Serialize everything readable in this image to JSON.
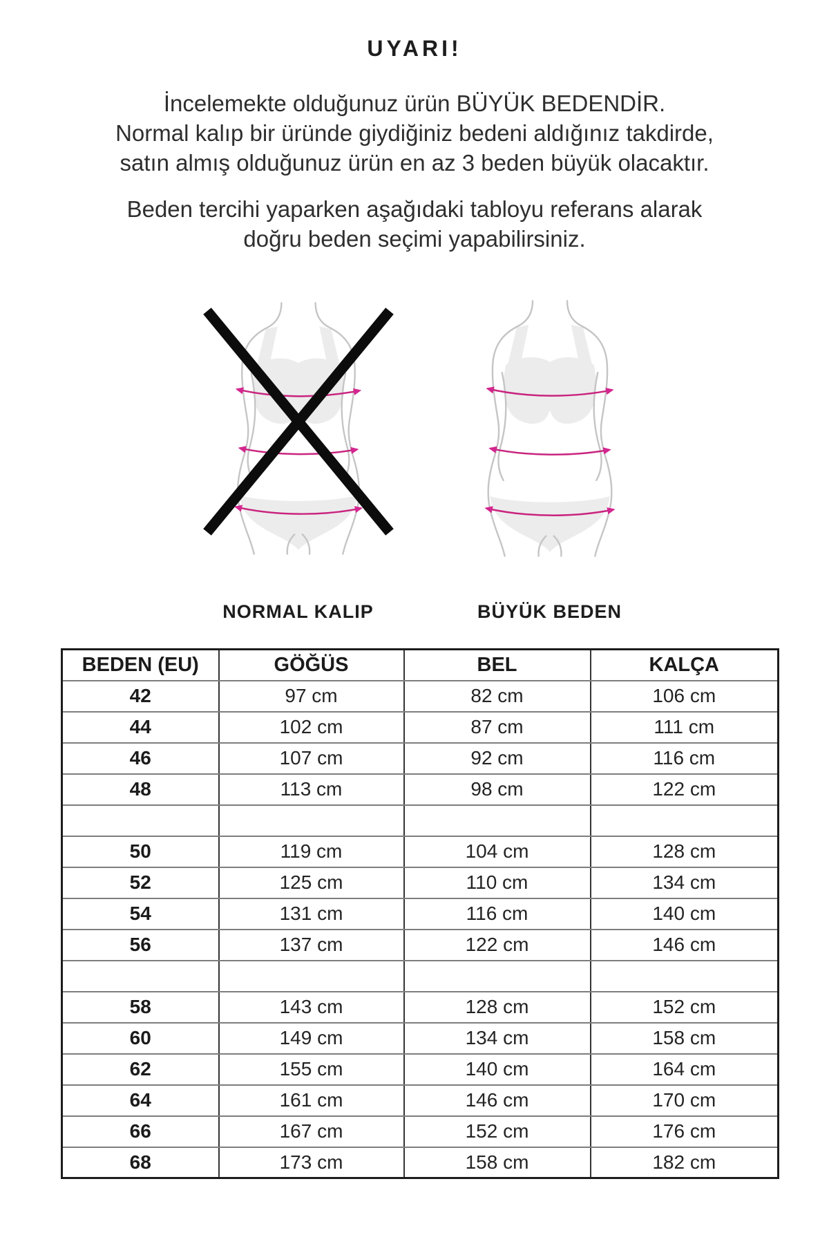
{
  "warning": {
    "title": "UYARI!",
    "intro_prefix": "İncelemekte olduğunuz ürün ",
    "intro_emphasis": "BÜYÜK BEDENDİR.",
    "line2": "Normal kalıp bir üründe giydiğiniz bedeni aldığınız takdirde,",
    "line3": "satın almış olduğunuz ürün en az 3 beden büyük olacaktır.",
    "advice_line1": "Beden tercihi yaparken aşağıdaki tabloyu referans alarak",
    "advice_line2": "doğru beden seçimi yapabilirsiniz."
  },
  "figures": {
    "normal": {
      "label": "NORMAL KALIP",
      "crossed_out": true
    },
    "plus": {
      "label": "BÜYÜK BEDEN",
      "crossed_out": false
    }
  },
  "size_table": {
    "headers": [
      "BEDEN (EU)",
      "GÖĞÜS",
      "BEL",
      "KALÇA"
    ],
    "rows": [
      [
        "42",
        "97 cm",
        "82 cm",
        "106 cm"
      ],
      [
        "44",
        "102 cm",
        "87 cm",
        "111 cm"
      ],
      [
        "46",
        "107 cm",
        "92 cm",
        "116 cm"
      ],
      [
        "48",
        "113 cm",
        "98 cm",
        "122 cm"
      ],
      [
        "",
        "",
        "",
        ""
      ],
      [
        "50",
        "119 cm",
        "104 cm",
        "128 cm"
      ],
      [
        "52",
        "125 cm",
        "110 cm",
        "134 cm"
      ],
      [
        "54",
        "131 cm",
        "116 cm",
        "140 cm"
      ],
      [
        "56",
        "137 cm",
        "122 cm",
        "146 cm"
      ],
      [
        "",
        "",
        "",
        ""
      ],
      [
        "58",
        "143 cm",
        "128 cm",
        "152 cm"
      ],
      [
        "60",
        "149 cm",
        "134 cm",
        "158 cm"
      ],
      [
        "62",
        "155 cm",
        "140 cm",
        "164 cm"
      ],
      [
        "64",
        "161 cm",
        "146 cm",
        "170 cm"
      ],
      [
        "66",
        "167 cm",
        "152 cm",
        "176 cm"
      ],
      [
        "68",
        "173 cm",
        "158 cm",
        "182 cm"
      ]
    ]
  },
  "colors": {
    "text": "#242424",
    "measure_arrow_pink": "#d4268f",
    "figure_outline_gray": "#c5c5c5",
    "figure_fill_gray": "#ececec",
    "cross_black": "#0c0c0c"
  }
}
